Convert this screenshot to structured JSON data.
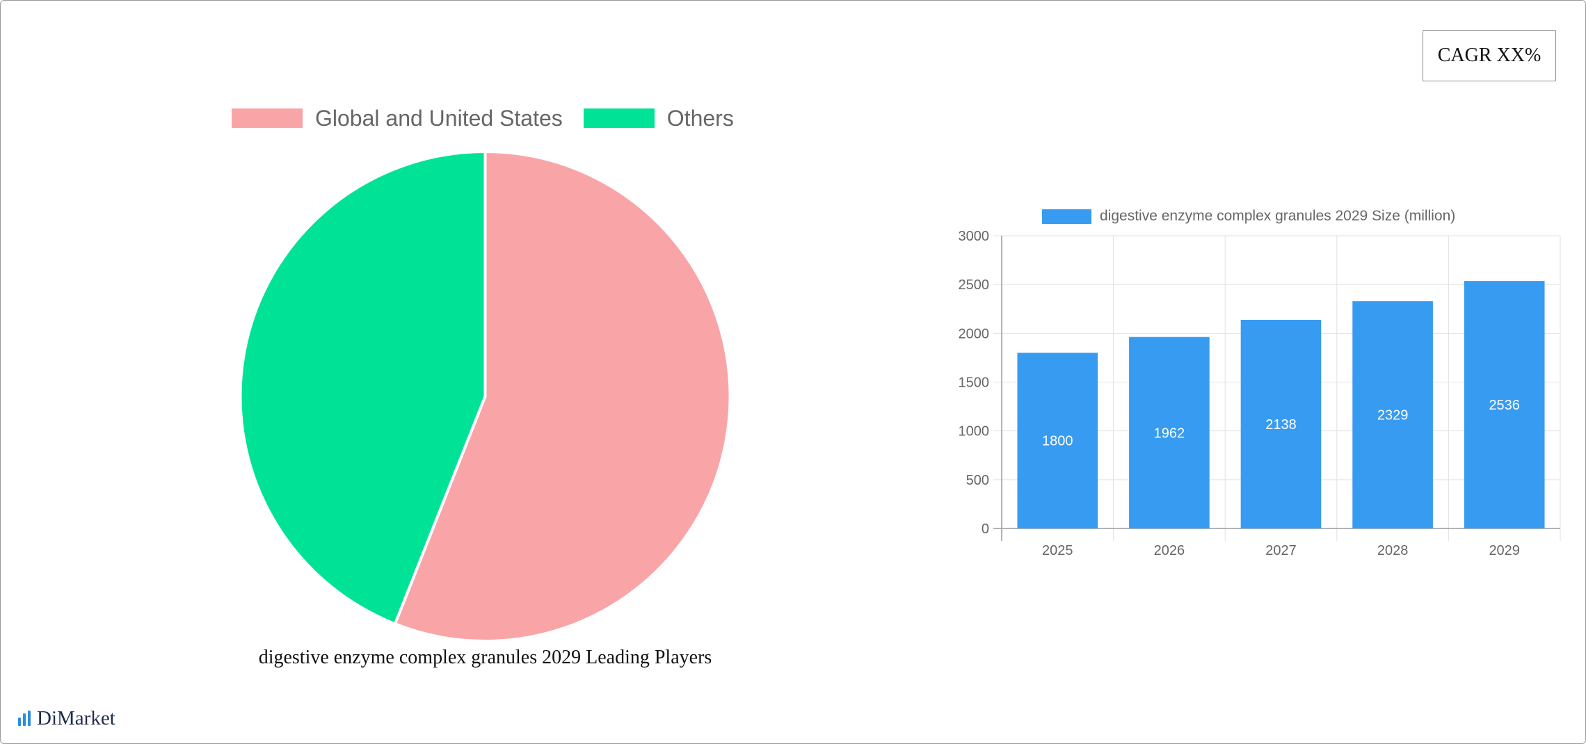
{
  "cagr_label": "CAGR XX%",
  "brand_name": "DiMarket",
  "colors": {
    "global_us": "#f9a5a7",
    "others": "#00e396",
    "bar": "#379bf1",
    "grid": "#e2e2e2",
    "axis": "#9a9a9a",
    "text": "#666666"
  },
  "pie_legend": {
    "global_label": "Global and United States",
    "others_label": "Others"
  },
  "pie_title": "digestive enzyme complex granules 2029 Leading Players",
  "bar_legend_label": "digestive enzyme complex granules 2029 Size (million)",
  "chart_data": [
    {
      "type": "pie",
      "title": "digestive enzyme complex granules 2029 Leading Players",
      "labels": [
        "Global and United States",
        "Others"
      ],
      "values": [
        56,
        44
      ],
      "legend": "top"
    },
    {
      "type": "bar",
      "title": "",
      "categories": [
        "2025",
        "2026",
        "2027",
        "2028",
        "2029"
      ],
      "series": [
        {
          "name": "digestive enzyme complex granules 2029 Size (million)",
          "values": [
            1800,
            1962,
            2138,
            2329,
            2536
          ]
        }
      ],
      "yticks": [
        "0",
        "500",
        "1000",
        "1500",
        "2000",
        "2500",
        "3000"
      ],
      "ylim": [
        0,
        3000
      ],
      "grid": true,
      "legend": "top",
      "data_labels": true
    }
  ]
}
